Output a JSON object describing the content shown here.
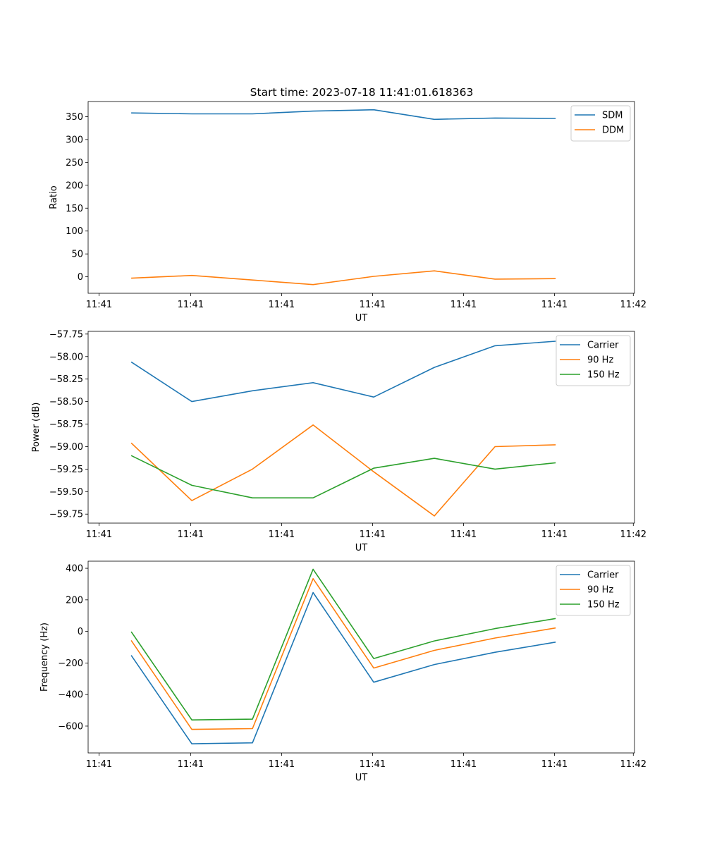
{
  "title": "Start time: 2023-07-18 11:41:01.618363",
  "colors": {
    "blue": "#1f77b4",
    "orange": "#ff7f0e",
    "green": "#2ca02c"
  },
  "chart_data": [
    {
      "type": "line",
      "xlabel": "UT",
      "ylabel": "Ratio",
      "x": [
        1,
        2,
        3,
        4,
        5,
        6,
        7,
        8
      ],
      "xlim": [
        0.29,
        9.3
      ],
      "x_ticks": [
        0.47,
        1.98,
        3.48,
        4.98,
        6.48,
        7.98,
        9.28
      ],
      "x_tick_labels": [
        "11:41",
        "11:41",
        "11:41",
        "11:41",
        "11:41",
        "11:41",
        "11:42"
      ],
      "ylim": [
        -36,
        383
      ],
      "y_ticks": [
        350,
        300,
        250,
        200,
        150,
        100,
        50,
        0
      ],
      "y_tick_labels": [
        "350",
        "300",
        "250",
        "200",
        "150",
        "100",
        "50",
        "0"
      ],
      "legend": "top-right",
      "series": [
        {
          "name": "SDM",
          "color": "#1f77b4",
          "values": [
            358,
            356,
            356,
            362,
            365,
            344,
            347,
            346
          ]
        },
        {
          "name": "DDM",
          "color": "#ff7f0e",
          "values": [
            -3,
            3,
            -7,
            -17,
            1,
            13,
            -5,
            -4
          ]
        }
      ]
    },
    {
      "type": "line",
      "xlabel": "UT",
      "ylabel": "Power (dB)",
      "x": [
        1,
        2,
        3,
        4,
        5,
        6,
        7,
        8
      ],
      "xlim": [
        0.29,
        9.3
      ],
      "x_ticks": [
        0.47,
        1.98,
        3.48,
        4.98,
        6.48,
        7.98,
        9.28
      ],
      "x_tick_labels": [
        "11:41",
        "11:41",
        "11:41",
        "11:41",
        "11:41",
        "11:41",
        "11:42"
      ],
      "ylim": [
        -59.85,
        -57.72
      ],
      "y_ticks": [
        -57.75,
        -58.0,
        -58.25,
        -58.5,
        -58.75,
        -59.0,
        -59.25,
        -59.5,
        -59.75
      ],
      "y_tick_labels": [
        "−57.75",
        "−58.00",
        "−58.25",
        "−58.50",
        "−58.75",
        "−59.00",
        "−59.25",
        "−59.50",
        "−59.75"
      ],
      "legend": "top-right",
      "series": [
        {
          "name": "Carrier",
          "color": "#1f77b4",
          "values": [
            -58.06,
            -58.5,
            -58.38,
            -58.29,
            -58.45,
            -58.12,
            -57.88,
            -57.83
          ]
        },
        {
          "name": "90 Hz",
          "color": "#ff7f0e",
          "values": [
            -58.96,
            -59.6,
            -59.25,
            -58.76,
            -59.28,
            -59.77,
            -59.0,
            -58.98
          ]
        },
        {
          "name": "150 Hz",
          "color": "#2ca02c",
          "values": [
            -59.1,
            -59.43,
            -59.57,
            -59.57,
            -59.24,
            -59.13,
            -59.25,
            -59.18
          ]
        }
      ]
    },
    {
      "type": "line",
      "xlabel": "UT",
      "ylabel": "Frequency (Hz)",
      "x": [
        1,
        2,
        3,
        4,
        5,
        6,
        7,
        8
      ],
      "xlim": [
        0.29,
        9.3
      ],
      "x_ticks": [
        0.47,
        1.98,
        3.48,
        4.98,
        6.48,
        7.98,
        9.28
      ],
      "x_tick_labels": [
        "11:41",
        "11:41",
        "11:41",
        "11:41",
        "11:41",
        "11:41",
        "11:42"
      ],
      "ylim": [
        -770,
        445
      ],
      "y_ticks": [
        400,
        200,
        0,
        -200,
        -400,
        -600
      ],
      "y_tick_labels": [
        "400",
        "200",
        "0",
        "−200",
        "−400",
        "−600"
      ],
      "legend": "top-right",
      "series": [
        {
          "name": "Carrier",
          "color": "#1f77b4",
          "values": [
            -152,
            -712,
            -706,
            246,
            -322,
            -210,
            -132,
            -68
          ]
        },
        {
          "name": "90 Hz",
          "color": "#ff7f0e",
          "values": [
            -57,
            -621,
            -616,
            334,
            -232,
            -120,
            -42,
            22
          ]
        },
        {
          "name": "150 Hz",
          "color": "#2ca02c",
          "values": [
            -2,
            -561,
            -556,
            394,
            -172,
            -60,
            18,
            82
          ]
        }
      ]
    }
  ]
}
